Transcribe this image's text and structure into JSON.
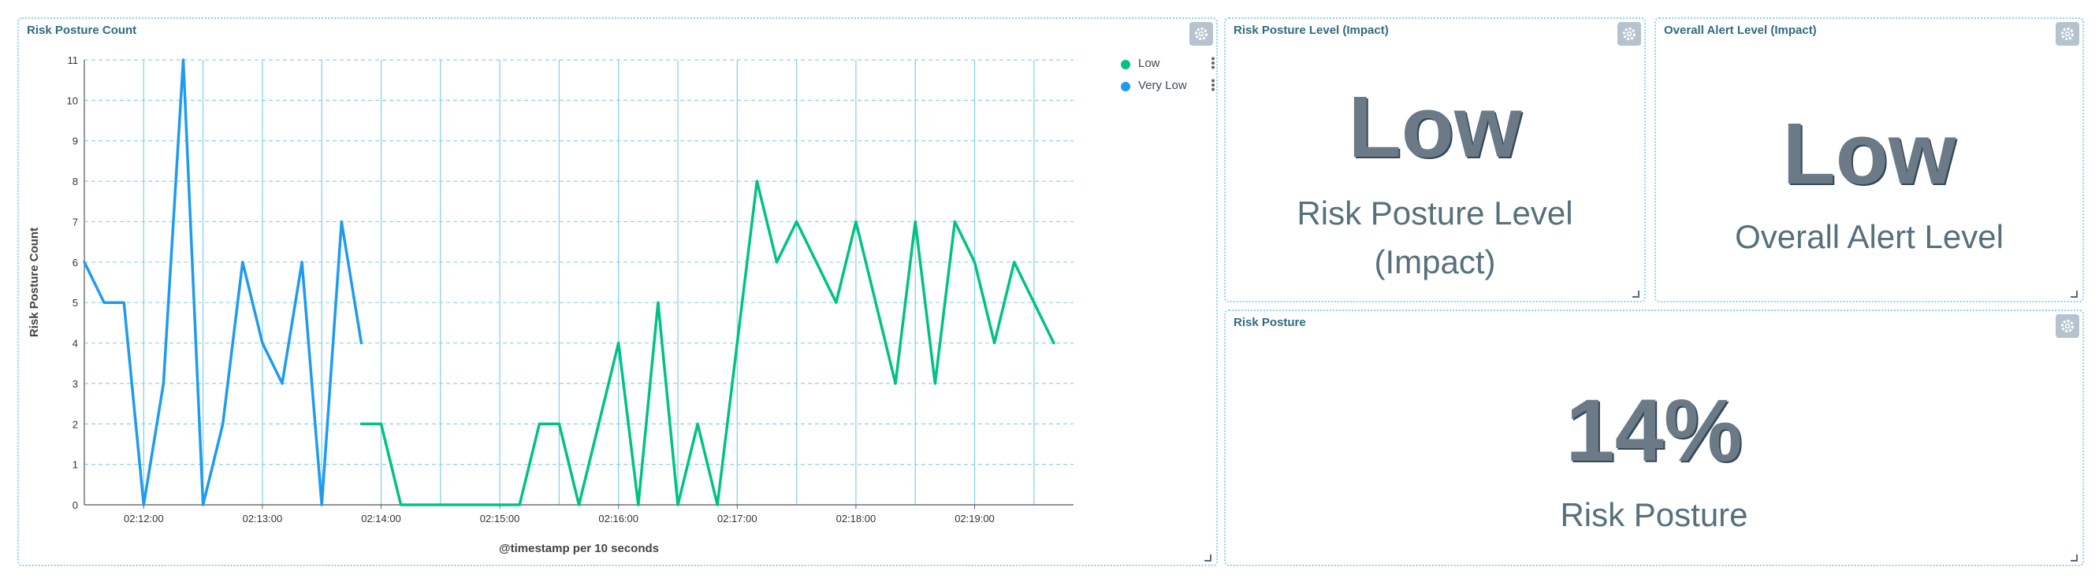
{
  "panels": {
    "chart_panel": {
      "title": "Risk Posture Count"
    },
    "level_panel": {
      "title": "Risk Posture Level (Impact)",
      "value": "Low",
      "label_line1": "Risk Posture Level",
      "label_line2": "(Impact)"
    },
    "alert_panel": {
      "title": "Overall Alert Level (Impact)",
      "value": "Low",
      "label": "Overall Alert Level"
    },
    "posture_panel": {
      "title": "Risk Posture",
      "value": "14%",
      "label": "Risk Posture"
    }
  },
  "icons": {
    "panel_settings": "gear-icon",
    "panel_resize": "resize-handle-icon",
    "legend_options": "more-vertical-icon"
  },
  "colors": {
    "low": "#00c283",
    "very_low": "#1e9bf0",
    "title": "#2f6b7f",
    "metric": "#6b7a86"
  },
  "chart_data": {
    "type": "line",
    "title": "Risk Posture Count",
    "xlabel": "@timestamp per 10 seconds",
    "ylabel": "Risk Posture Count",
    "ylim": [
      0,
      11
    ],
    "yticks": [
      "0",
      "1",
      "2",
      "3",
      "4",
      "5",
      "6",
      "7",
      "8",
      "9",
      "10",
      "11"
    ],
    "xticks": [
      "02:12:00",
      "02:13:00",
      "02:14:00",
      "02:15:00",
      "02:16:00",
      "02:17:00",
      "02:18:00",
      "02:19:00"
    ],
    "xlim": [
      "02:11:30",
      "02:19:50"
    ],
    "grid": true,
    "legend_position": "top-right",
    "series": [
      {
        "name": "Very Low",
        "color": "#1e9bf0",
        "x": [
          "02:11:30",
          "02:11:40",
          "02:11:50",
          "02:12:00",
          "02:12:10",
          "02:12:20",
          "02:12:30",
          "02:12:40",
          "02:12:50",
          "02:13:00",
          "02:13:10",
          "02:13:20",
          "02:13:30",
          "02:13:40",
          "02:13:50"
        ],
        "y": [
          6,
          5,
          5,
          0,
          3,
          11,
          0,
          2,
          6,
          4,
          3,
          6,
          0,
          7,
          4
        ]
      },
      {
        "name": "Low",
        "color": "#00c283",
        "x": [
          "02:13:50",
          "02:14:00",
          "02:14:10",
          "02:14:20",
          "02:14:30",
          "02:14:40",
          "02:14:50",
          "02:15:00",
          "02:15:10",
          "02:15:20",
          "02:15:30",
          "02:15:40",
          "02:15:50",
          "02:16:00",
          "02:16:10",
          "02:16:20",
          "02:16:30",
          "02:16:40",
          "02:16:50",
          "02:17:00",
          "02:17:10",
          "02:17:20",
          "02:17:30",
          "02:17:40",
          "02:17:50",
          "02:18:00",
          "02:18:10",
          "02:18:20",
          "02:18:30",
          "02:18:40",
          "02:18:50",
          "02:19:00",
          "02:19:10",
          "02:19:20",
          "02:19:30",
          "02:19:40"
        ],
        "y": [
          2,
          2,
          0,
          0,
          0,
          0,
          0,
          0,
          0,
          2,
          2,
          0,
          2,
          4,
          0,
          5,
          0,
          2,
          0,
          4,
          8,
          6,
          7,
          6,
          5,
          7,
          5,
          3,
          7,
          3,
          7,
          6,
          4,
          6,
          5,
          4
        ]
      }
    ]
  }
}
